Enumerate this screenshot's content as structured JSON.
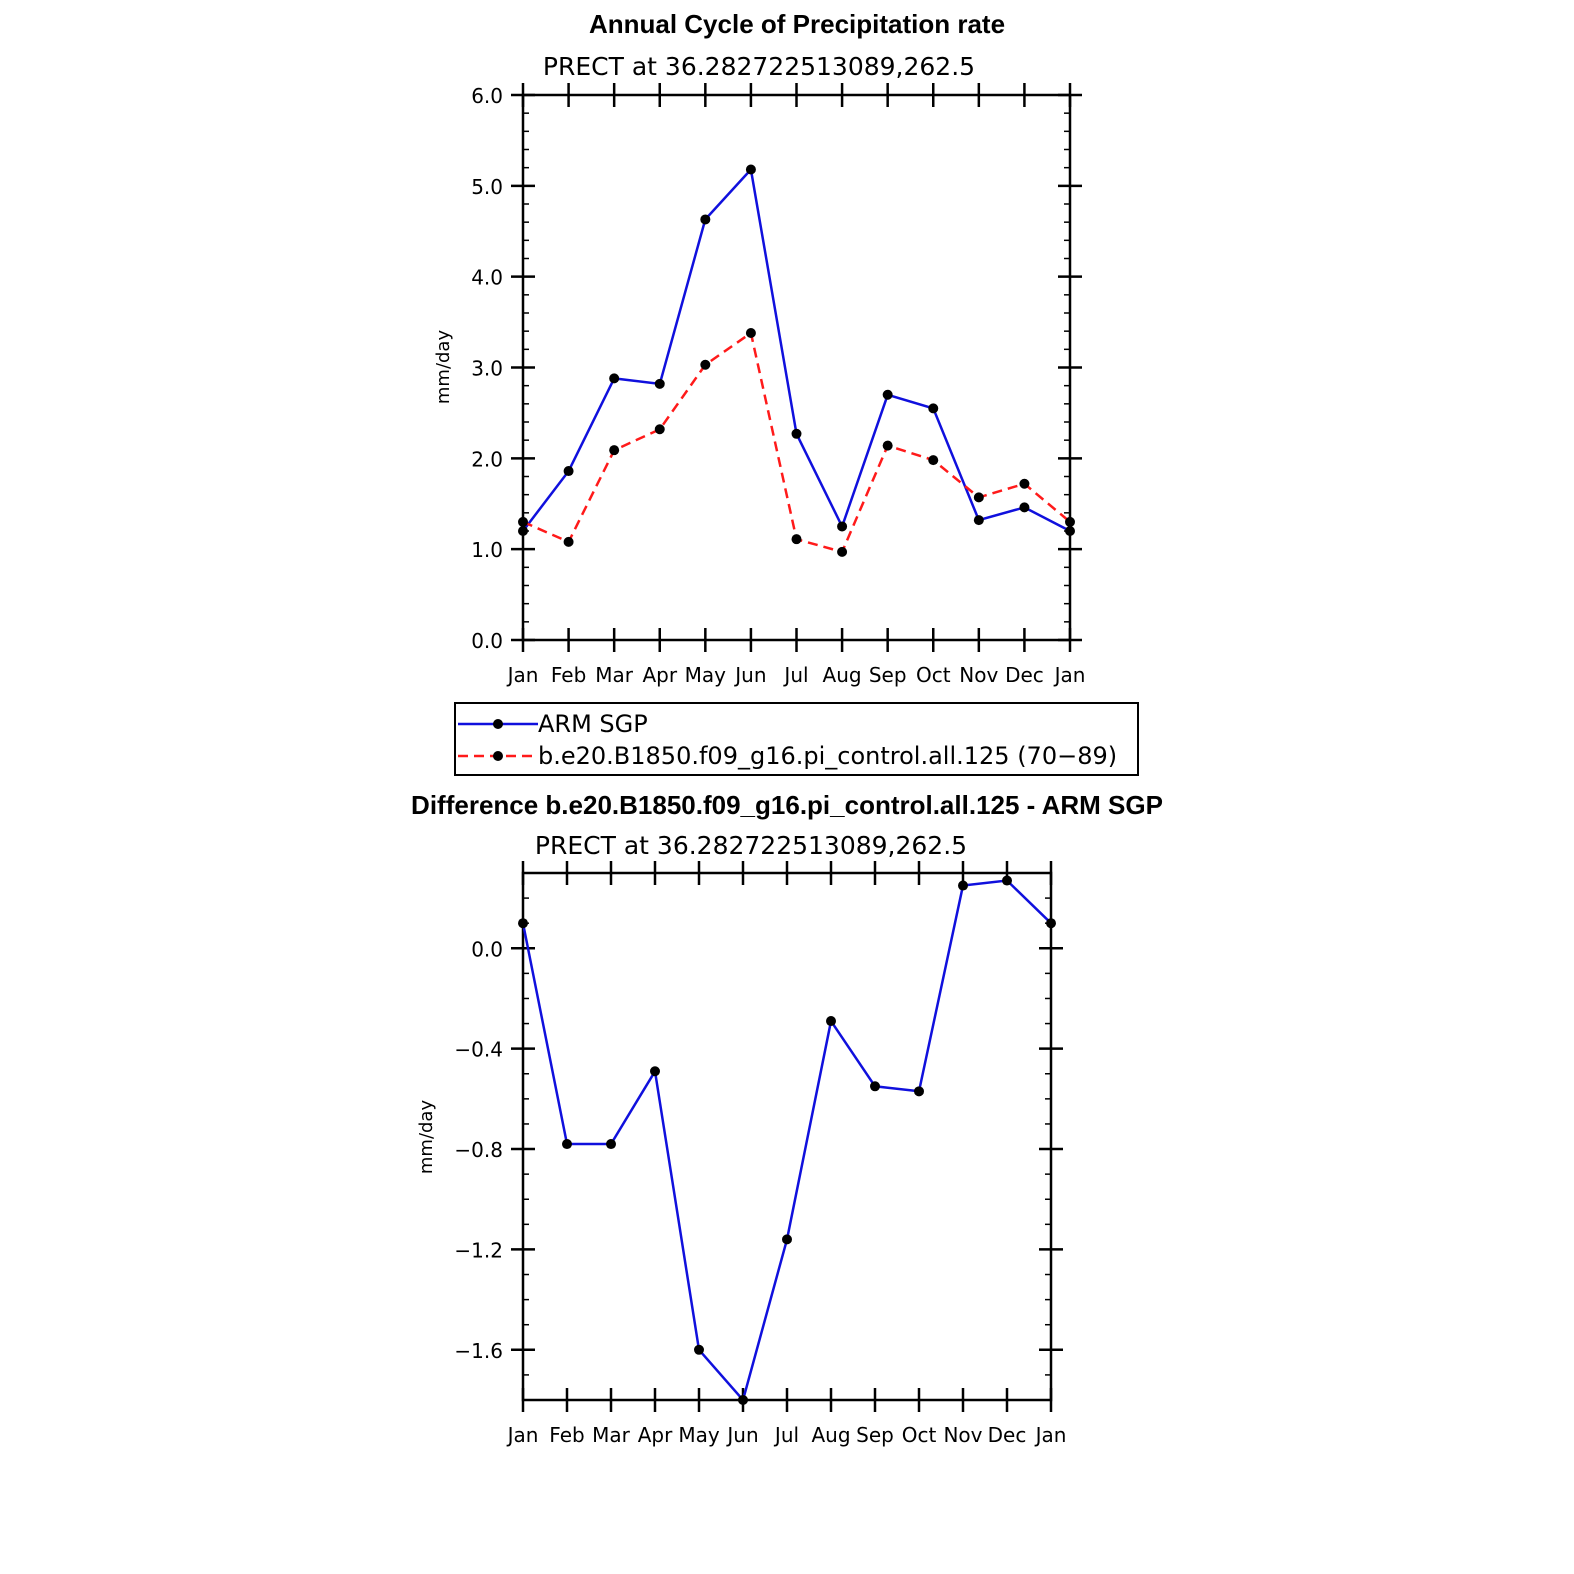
{
  "chart_data": [
    {
      "type": "line",
      "title": "Annual Cycle of Precipitation rate",
      "subtitle": "PRECT at 36.282722513089,262.5",
      "ylabel": "mm/day",
      "xlabel": "",
      "categories": [
        "Jan",
        "Feb",
        "Mar",
        "Apr",
        "May",
        "Jun",
        "Jul",
        "Aug",
        "Sep",
        "Oct",
        "Nov",
        "Dec",
        "Jan"
      ],
      "ylim": [
        0.0,
        6.0
      ],
      "yticks": [
        "0.0",
        "1.0",
        "2.0",
        "3.0",
        "4.0",
        "5.0",
        "6.0"
      ],
      "series": [
        {
          "name": "ARM SGP",
          "color": "#1010dd",
          "dash": "solid",
          "values": [
            1.2,
            1.86,
            2.88,
            2.82,
            4.63,
            5.18,
            2.27,
            1.25,
            2.7,
            2.55,
            1.32,
            1.46,
            1.2
          ]
        },
        {
          "name": "b.e20.B1850.f09_g16.pi_control.all.125 (70−89)",
          "color": "#ff1a1a",
          "dash": "dashed",
          "values": [
            1.3,
            1.08,
            2.09,
            2.32,
            3.03,
            3.38,
            1.11,
            0.97,
            2.14,
            1.98,
            1.57,
            1.72,
            1.3
          ]
        }
      ],
      "legend": "below"
    },
    {
      "type": "line",
      "title": "Difference b.e20.B1850.f09_g16.pi_control.all.125 - ARM SGP",
      "subtitle": "PRECT at 36.282722513089,262.5",
      "ylabel": "mm/day",
      "xlabel": "",
      "categories": [
        "Jan",
        "Feb",
        "Mar",
        "Apr",
        "May",
        "Jun",
        "Jul",
        "Aug",
        "Sep",
        "Oct",
        "Nov",
        "Dec",
        "Jan"
      ],
      "ylim": [
        -1.8,
        0.3
      ],
      "yticks": [
        "0.0",
        "−0.4",
        "−0.8",
        "−1.2",
        "−1.6"
      ],
      "ytick_values": [
        0.0,
        -0.4,
        -0.8,
        -1.2,
        -1.6
      ],
      "series": [
        {
          "color": "#1010dd",
          "dash": "solid",
          "values": [
            0.1,
            -0.78,
            -0.78,
            -0.49,
            -1.6,
            -1.8,
            -1.16,
            -0.29,
            -0.55,
            -0.57,
            0.25,
            0.27,
            0.1
          ]
        }
      ]
    }
  ]
}
